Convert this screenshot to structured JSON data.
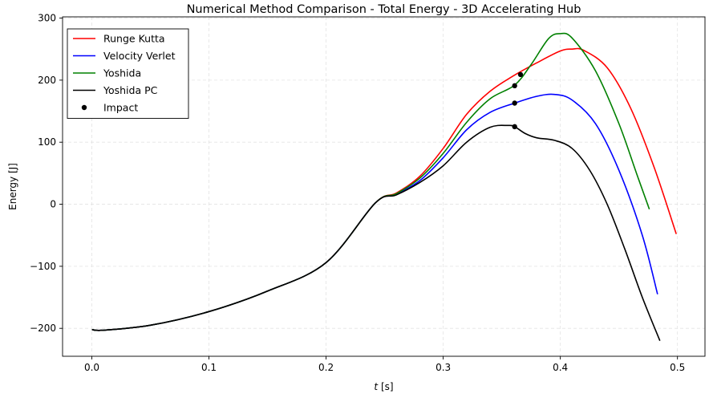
{
  "chart_data": {
    "type": "line",
    "title": "Numerical Method Comparison - Total Energy - 3D Accelerating Hub",
    "xlabel_italic": "t",
    "xlabel_unit": " [s]",
    "ylabel": "Energy [J]",
    "xlim": [
      -0.025,
      0.5235
    ],
    "ylim": [
      -245,
      302
    ],
    "xticks": [
      0.0,
      0.1,
      0.2,
      0.3,
      0.4,
      0.5
    ],
    "xtick_labels": [
      "0.0",
      "0.1",
      "0.2",
      "0.3",
      "0.4",
      "0.5"
    ],
    "yticks": [
      -200,
      -100,
      0,
      100,
      200,
      300
    ],
    "ytick_labels": [
      "−200",
      "−100",
      "0",
      "100",
      "200",
      "300"
    ],
    "grid": true,
    "legend_position": "top-left",
    "series": [
      {
        "name": "Runge Kutta",
        "color": "#ff0000",
        "x": [
          0.0,
          0.01,
          0.05,
          0.1,
          0.15,
          0.2,
          0.242,
          0.26,
          0.28,
          0.3,
          0.32,
          0.34,
          0.36,
          0.38,
          0.4,
          0.41,
          0.42,
          0.44,
          0.46,
          0.48,
          0.499
        ],
        "y": [
          -202,
          -203,
          -195,
          -173,
          -140,
          -94,
          2,
          18,
          45,
          90,
          145,
          182,
          207,
          228,
          247,
          250,
          248,
          220,
          155,
          60,
          -48
        ]
      },
      {
        "name": "Velocity Verlet",
        "color": "#0000ff",
        "x": [
          0.0,
          0.01,
          0.05,
          0.1,
          0.15,
          0.2,
          0.242,
          0.26,
          0.28,
          0.3,
          0.32,
          0.34,
          0.361,
          0.38,
          0.395,
          0.41,
          0.43,
          0.45,
          0.47,
          0.483
        ],
        "y": [
          -202,
          -203,
          -195,
          -173,
          -140,
          -94,
          2,
          16,
          38,
          75,
          120,
          148,
          163,
          174,
          177,
          168,
          130,
          55,
          -50,
          -145
        ]
      },
      {
        "name": "Yoshida",
        "color": "#008000",
        "x": [
          0.0,
          0.01,
          0.05,
          0.1,
          0.15,
          0.2,
          0.242,
          0.26,
          0.28,
          0.3,
          0.32,
          0.34,
          0.361,
          0.375,
          0.39,
          0.4,
          0.41,
          0.43,
          0.45,
          0.465,
          0.476
        ],
        "y": [
          -202,
          -203,
          -195,
          -173,
          -140,
          -94,
          2,
          17,
          42,
          82,
          132,
          170,
          192,
          225,
          267,
          275,
          268,
          215,
          130,
          50,
          -8
        ]
      },
      {
        "name": "Yoshida PC",
        "color": "#000000",
        "x": [
          0.0,
          0.01,
          0.05,
          0.1,
          0.15,
          0.2,
          0.242,
          0.26,
          0.28,
          0.3,
          0.32,
          0.34,
          0.355,
          0.361,
          0.37,
          0.38,
          0.395,
          0.41,
          0.425,
          0.44,
          0.455,
          0.47,
          0.485
        ],
        "y": [
          -202,
          -203,
          -195,
          -173,
          -140,
          -94,
          2,
          15,
          35,
          62,
          100,
          124,
          127,
          125,
          114,
          107,
          103,
          90,
          55,
          0,
          -72,
          -150,
          -220
        ]
      }
    ],
    "impact": {
      "name": "Impact",
      "color": "#000000",
      "points": [
        [
          0.366,
          209
        ],
        [
          0.361,
          191
        ],
        [
          0.361,
          163
        ],
        [
          0.361,
          125
        ]
      ]
    }
  }
}
